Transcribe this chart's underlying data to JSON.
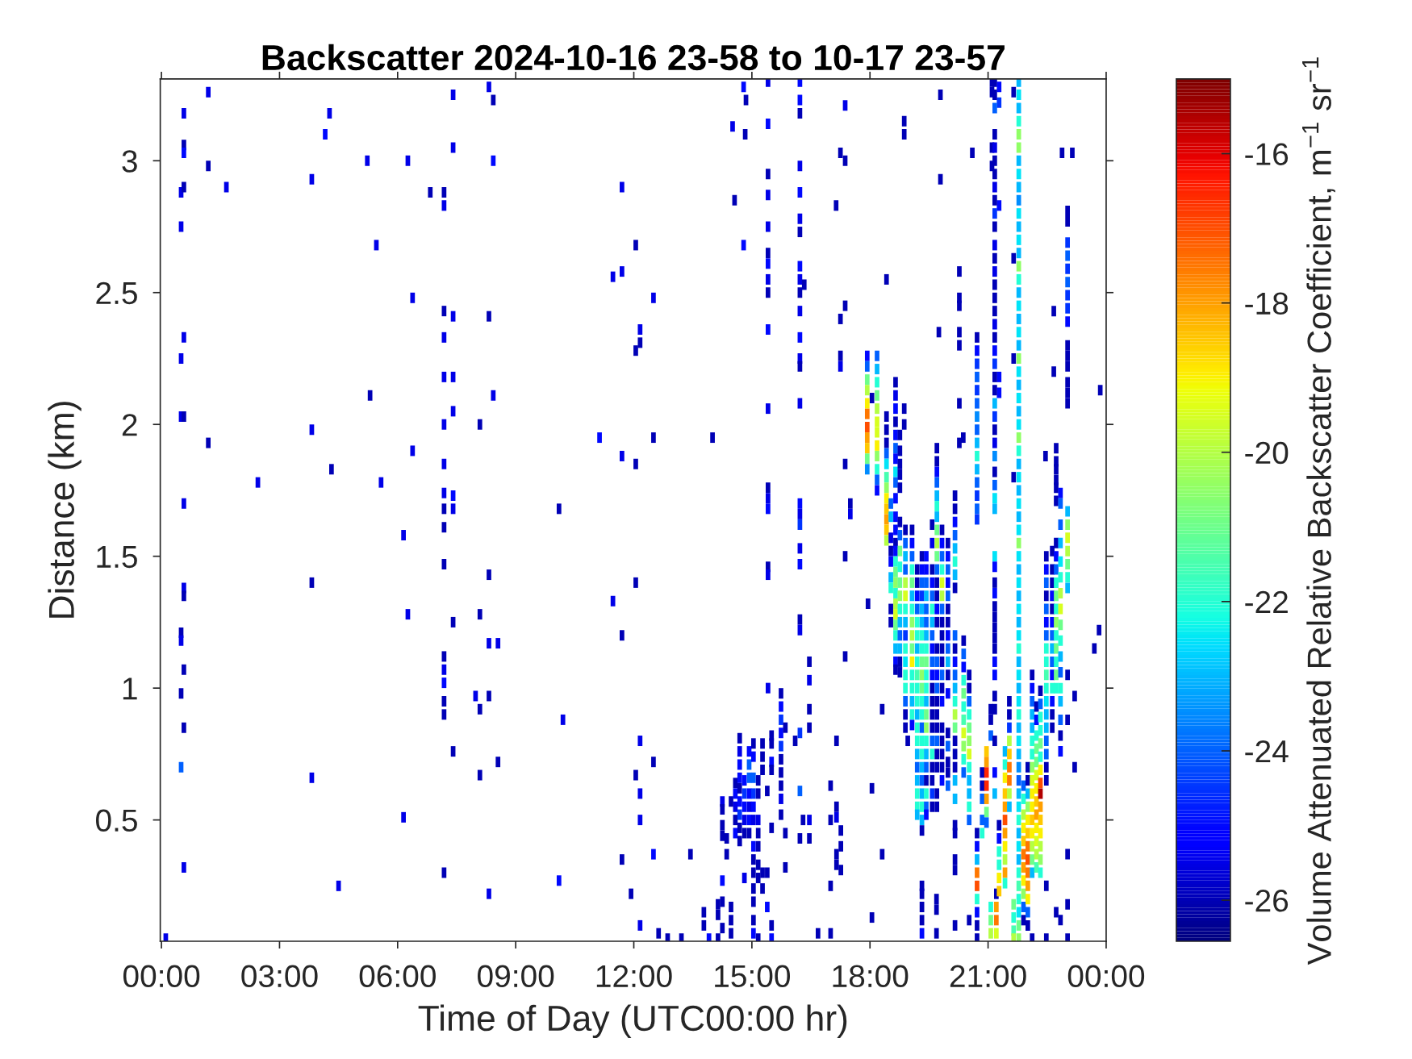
{
  "chart_data": {
    "type": "scatter",
    "title": "Backscatter 2024-10-16 23-58 to 10-17 23-57",
    "xlabel": "Time of Day (UTC00:00 hr)",
    "ylabel": "Distance (km)",
    "clabel": "Volume Attenuated Relative Backscatter Coefficient, m$^{−1}$ sr$^{−1}$",
    "marker": "square",
    "xlim": [
      -0.03,
      24
    ],
    "ylim": [
      0.04,
      3.31
    ],
    "xticks": [
      {
        "value": 0,
        "label": "00:00"
      },
      {
        "value": 3,
        "label": "03:00"
      },
      {
        "value": 6,
        "label": "06:00"
      },
      {
        "value": 9,
        "label": "09:00"
      },
      {
        "value": 12,
        "label": "12:00"
      },
      {
        "value": 15,
        "label": "15:00"
      },
      {
        "value": 18,
        "label": "18:00"
      },
      {
        "value": 21,
        "label": "21:00"
      },
      {
        "value": 24,
        "label": "00:00"
      }
    ],
    "yticks": [
      0.5,
      1,
      1.5,
      2,
      2.5,
      3
    ],
    "clim": [
      -26.55,
      -15
    ],
    "cticks": [
      -26,
      -24,
      -22,
      -20,
      -18,
      -16
    ],
    "x": [
      1.19,
      0.57,
      0.57,
      0.57,
      1.19,
      0.5,
      0.57,
      1.65,
      0.5,
      3.82,
      4.27,
      4.16,
      5.23,
      6.26,
      5.46,
      6.83,
      7.18,
      7.18,
      7.41,
      8.32,
      8.43,
      7.41,
      8.43,
      6.38,
      7.18,
      7.18,
      7.41,
      8.32,
      7.18,
      7.41,
      8.43,
      5.3,
      0.5,
      0.57,
      0.5,
      0.57,
      3.82,
      7.18,
      7.41,
      8.09,
      6.38,
      1.19,
      7.18,
      4.32,
      2.45,
      5.58,
      0.57,
      7.18,
      7.18,
      7.18,
      7.41,
      7.41,
      6.15,
      10.1,
      7.18,
      8.32,
      3.82,
      0.57,
      0.57,
      6.26,
      8.09,
      7.41,
      0.5,
      0.5,
      8.32,
      8.55,
      7.18,
      7.18,
      7.18,
      0.57,
      0.5,
      7.18,
      7.18,
      7.98,
      8.32,
      8.09,
      0.57,
      10.2,
      7.41,
      8.09,
      8.55,
      0.5,
      3.82,
      6.15,
      0.57,
      7.18,
      10.1,
      4.5,
      8.32,
      0.11,
      12.05,
      11.7,
      11.47,
      12.5,
      12.16,
      12.16,
      12.05,
      11.7,
      11.13,
      12.5,
      14.0,
      11.7,
      12.05,
      12.05,
      11.47,
      11.7,
      12.16,
      12.05,
      12.5,
      12.16,
      12.16,
      11.7,
      12.5,
      13.44,
      11.93,
      12.16,
      12.63,
      12.86,
      13.21,
      13.91,
      13.78,
      13.78,
      14.14,
      14.14,
      14.14,
      14.79,
      14.85,
      14.51,
      14.83,
      14.56,
      14.79,
      14.25,
      14.25,
      14.25,
      14.25,
      14.25,
      14.25,
      14.25,
      14.36,
      14.36,
      14.47,
      14.47,
      14.47,
      14.47,
      14.58,
      14.58,
      14.58,
      14.58,
      14.58,
      14.69,
      14.69,
      14.69,
      14.69,
      14.69,
      14.69,
      14.69,
      14.69,
      14.69,
      14.81,
      14.81,
      14.81,
      14.81,
      14.81,
      14.81,
      14.93,
      14.93,
      14.93,
      14.93,
      14.93,
      14.93,
      14.93,
      15.04,
      15.04,
      15.04,
      15.04,
      15.04,
      15.04,
      15.04,
      15.04,
      15.04,
      15.04,
      15.04,
      15.04,
      15.04,
      15.16,
      15.16,
      15.16,
      15.16,
      15.16,
      15.16,
      15.16,
      15.16,
      15.27,
      15.27,
      15.27,
      15.27,
      15.27,
      15.39,
      15.39,
      15.39,
      15.5,
      15.5,
      15.5,
      15.5,
      15.5,
      15.5,
      15.5,
      15.74,
      15.74,
      15.74,
      15.74,
      15.74,
      15.74,
      15.74,
      15.74,
      15.74,
      15.74,
      15.85,
      15.85,
      15.85,
      16.1,
      15.41,
      15.41,
      15.41,
      15.41,
      15.41,
      15.41,
      15.41,
      15.41,
      15.41,
      15.41,
      15.41,
      15.41,
      15.41,
      15.41,
      15.41,
      15.41,
      15.41,
      16.22,
      16.22,
      16.22,
      16.22,
      16.22,
      16.22,
      16.22,
      16.22,
      16.22,
      16.22,
      16.22,
      16.22,
      16.22,
      16.22,
      16.22,
      16.22,
      16.22,
      16.22,
      16.22,
      16.22,
      16.22,
      16.22,
      16.22,
      16.22,
      16.22,
      16.33,
      16.3,
      16.46,
      16.46,
      16.46,
      16.46,
      16.46,
      16.46,
      16.68,
      17.0,
      17.0,
      17.0,
      17.0,
      17.15,
      17.15,
      17.15,
      17.15,
      17.15,
      17.26,
      17.26,
      17.26,
      17.37,
      17.37,
      18.05,
      18.05,
      18.31,
      18.31,
      17.25,
      17.37,
      17.37,
      17.14,
      17.37,
      17.25,
      17.25,
      17.25,
      17.37,
      17.5,
      17.5,
      17.95,
      18.05,
      18.87,
      18.87,
      18.87,
      18.87,
      20.37,
      20.6,
      19.32,
      19.32,
      19.32,
      19.32,
      19.32,
      19.69,
      19.69,
      19.69,
      20.16,
      20.16,
      20.16,
      20.16,
      20.16,
      20.52,
      22.88,
      23.14,
      22.67,
      22.67,
      23.85,
      22.46,
      23.82,
      23.7,
      23.2,
      23.2,
      23.02,
      23.02,
      23.02,
      23.02,
      23.02,
      22.73,
      22.84,
      22.48,
      22.48,
      22.12,
      21.1,
      21.1,
      21.1,
      21.1,
      21.28,
      21.28,
      21.28,
      21.28,
      21.28,
      21.65,
      21.65,
      21.65,
      21.65,
      18.96,
      19.79,
      19.79,
      19.75,
      17.93,
      17.93,
      17.93,
      17.93,
      17.93,
      17.93,
      17.93,
      17.93,
      17.93,
      17.93,
      17.93,
      18.18,
      18.18,
      18.18,
      18.18,
      18.18,
      18.18,
      18.18,
      18.18,
      18.18,
      18.18,
      18.18,
      18.18,
      18.42,
      18.42,
      18.42,
      18.42,
      18.42,
      18.42,
      18.42,
      18.42,
      18.42,
      18.42,
      18.42,
      18.42,
      18.42,
      18.53,
      18.53,
      18.53,
      18.53,
      18.53,
      18.53,
      18.53,
      18.53,
      18.53,
      18.65,
      18.65,
      18.65,
      18.65,
      18.65,
      18.65,
      18.65,
      18.65,
      18.65,
      18.65,
      18.65,
      18.65,
      18.65,
      18.65,
      18.65,
      18.65,
      18.65,
      18.65,
      18.65,
      18.65,
      18.65,
      18.65,
      18.65,
      18.65,
      18.65,
      18.76,
      18.76,
      18.76,
      18.76,
      18.76,
      18.76,
      18.76,
      18.76,
      18.76,
      18.76,
      18.76,
      18.76,
      18.76,
      18.76,
      18.76,
      18.76,
      18.76,
      18.9,
      18.9,
      18.9,
      18.9,
      18.9,
      18.9,
      18.9,
      18.9,
      18.9,
      18.9,
      18.9,
      18.9,
      18.9,
      18.9,
      18.9,
      18.9,
      19.07,
      19.07,
      19.07,
      19.07,
      19.07,
      19.07,
      19.07,
      19.07,
      19.07,
      19.07,
      19.07,
      19.07,
      19.07,
      19.07,
      19.07,
      19.07,
      19.2,
      19.2,
      19.2,
      19.2,
      19.2,
      19.2,
      19.2,
      19.2,
      19.2,
      19.2,
      19.2,
      19.2,
      19.2,
      19.2,
      19.2,
      19.2,
      19.2,
      19.2,
      19.2,
      19.2,
      19.32,
      19.32,
      19.32,
      19.32,
      19.32,
      19.32,
      19.32,
      19.32,
      19.32,
      19.32,
      19.32,
      19.32,
      19.32,
      19.32,
      19.32,
      19.32,
      19.32,
      19.32,
      19.32,
      19.32,
      19.32,
      19.32,
      19.43,
      19.43,
      19.43,
      19.43,
      19.43,
      19.43,
      19.43,
      19.43,
      19.43,
      19.43,
      19.43,
      19.43,
      19.43,
      19.43,
      19.43,
      19.43,
      19.43,
      19.43,
      19.43,
      19.43,
      19.43,
      19.58,
      19.58,
      19.58,
      19.58,
      19.58,
      19.58,
      19.58,
      19.58,
      19.58,
      19.58,
      19.58,
      19.58,
      19.58,
      19.58,
      19.58,
      19.58,
      19.58,
      19.58,
      19.58,
      19.58,
      19.58,
      19.7,
      19.7,
      19.7,
      19.7,
      19.7,
      19.7,
      19.7,
      19.7,
      19.7,
      19.7,
      19.7,
      19.7,
      19.7,
      19.7,
      19.7,
      19.7,
      19.7,
      19.7,
      19.7,
      19.7,
      19.7,
      19.7,
      19.7,
      19.7,
      19.7,
      19.7,
      19.7,
      19.83,
      19.83,
      19.83,
      19.83,
      19.83,
      19.83,
      19.83,
      19.83,
      19.83,
      19.83,
      19.83,
      19.83,
      19.83,
      19.83,
      19.83,
      19.83,
      19.83,
      19.83,
      19.83,
      19.98,
      19.98,
      19.98,
      19.98,
      19.98,
      19.98,
      19.98,
      19.98,
      19.98,
      19.98,
      19.98,
      19.98,
      19.98,
      19.98,
      19.98,
      19.98,
      19.98,
      20.16,
      20.16,
      20.16,
      20.16,
      20.16,
      20.16,
      20.16,
      20.16,
      20.16,
      20.16,
      20.16,
      20.16,
      20.16,
      20.16,
      20.16,
      20.16,
      20.16,
      20.16,
      20.16,
      20.16,
      20.16,
      20.27,
      20.27,
      20.27,
      20.27,
      20.27,
      20.27,
      20.27,
      20.38,
      20.38,
      20.38,
      20.38,
      20.38,
      20.38,
      20.38,
      20.38,
      20.38,
      20.38,
      20.38,
      20.52,
      20.52,
      20.52,
      20.52,
      20.52,
      20.52,
      20.52,
      20.52,
      20.52,
      20.52,
      20.52,
      20.52,
      20.72,
      20.72,
      20.72,
      20.72,
      20.72,
      20.72,
      20.72,
      20.72,
      20.72,
      20.72,
      20.72,
      20.72,
      20.72,
      20.72,
      20.72,
      20.72,
      20.72,
      20.72,
      20.72,
      20.72,
      20.72,
      20.72,
      20.72,
      20.72,
      20.85,
      20.85,
      20.85,
      20.85,
      20.85,
      20.96,
      20.96,
      20.96,
      20.96,
      20.96,
      20.96,
      20.96,
      21.07,
      21.07,
      21.07,
      21.07,
      21.07,
      21.07,
      21.17,
      21.17,
      21.17,
      21.17,
      21.17,
      21.17,
      21.17,
      21.17,
      21.17,
      21.17,
      21.17,
      21.17,
      21.17,
      21.17,
      21.17,
      21.17,
      21.17,
      21.17,
      21.17,
      21.17,
      21.17,
      21.17,
      21.17,
      21.17,
      21.17,
      21.17,
      21.17,
      21.17,
      21.17,
      21.17,
      21.17,
      21.17,
      21.17,
      21.17,
      21.17,
      21.17,
      21.17,
      21.17,
      21.17,
      21.17,
      21.17,
      21.17,
      21.17,
      21.17,
      21.17,
      21.17,
      21.17,
      21.17,
      21.21,
      21.21,
      21.21,
      21.21,
      21.28,
      21.28,
      21.28,
      21.28,
      21.28,
      21.28,
      21.43,
      21.43,
      21.43,
      21.43,
      21.43,
      21.43,
      21.43,
      21.43,
      21.43,
      21.43,
      21.43,
      21.54,
      21.54,
      21.54,
      21.54,
      21.54,
      21.54,
      21.54,
      21.54,
      21.54,
      21.65,
      21.65,
      21.65,
      21.65,
      21.78,
      21.78,
      21.78,
      21.78,
      21.78,
      21.78,
      21.78,
      21.78,
      21.78,
      21.78,
      21.78,
      21.78,
      21.78,
      21.78,
      21.78,
      21.78,
      21.78,
      21.78,
      21.78,
      21.78,
      21.78,
      21.78,
      21.78,
      21.78,
      21.78,
      21.78,
      21.78,
      21.78,
      21.78,
      21.78,
      21.78,
      21.78,
      21.78,
      21.78,
      21.78,
      21.78,
      21.78,
      21.78,
      21.78,
      21.78,
      21.78,
      21.78,
      21.78,
      21.78,
      21.78,
      21.78,
      21.78,
      21.78,
      21.78,
      21.78,
      21.78,
      21.78,
      21.78,
      21.78,
      21.78,
      21.78,
      21.78,
      21.78,
      21.78,
      21.78,
      21.78,
      21.78,
      21.78,
      21.78,
      21.78,
      21.78,
      21.9,
      21.9,
      21.9,
      21.9,
      21.9,
      21.9,
      21.9,
      21.9,
      21.9,
      21.9,
      21.9,
      22.01,
      22.01,
      22.01,
      22.01,
      22.01,
      22.01,
      22.01,
      22.01,
      22.01,
      22.01,
      22.01,
      22.01,
      22.01,
      22.12,
      22.12,
      22.12,
      22.12,
      22.12,
      22.12,
      22.12,
      22.12,
      22.12,
      22.12,
      22.12,
      22.12,
      22.12,
      22.12,
      22.12,
      22.12,
      22.23,
      22.23,
      22.23,
      22.23,
      22.23,
      22.23,
      22.23,
      22.23,
      22.23,
      22.23,
      22.23,
      22.23,
      22.23,
      22.33,
      22.33,
      22.33,
      22.33,
      22.33,
      22.33,
      22.33,
      22.33,
      22.33,
      22.33,
      22.33,
      22.33,
      22.33,
      22.33,
      22.33,
      22.48,
      22.48,
      22.48,
      22.48,
      22.48,
      22.48,
      22.48,
      22.48,
      22.48,
      22.48,
      22.48,
      22.48,
      22.48,
      22.48,
      22.48,
      22.48,
      22.48,
      22.48,
      22.63,
      22.63,
      22.63,
      22.63,
      22.63,
      22.63,
      22.63,
      22.63,
      22.63,
      22.63,
      22.63,
      22.63,
      22.63,
      22.63,
      22.73,
      22.73,
      22.73,
      22.73,
      22.73,
      22.73,
      22.73,
      22.73,
      22.73,
      22.73,
      22.73,
      22.73,
      22.73,
      22.73,
      22.73,
      22.73,
      22.73,
      22.73,
      22.84,
      22.84,
      22.84,
      22.84,
      22.84,
      22.84,
      22.84,
      22.84,
      22.84,
      22.84,
      22.84,
      22.84,
      22.84,
      22.84,
      22.84,
      22.84,
      22.84,
      23.02,
      23.02,
      23.02,
      23.02,
      23.02,
      23.02,
      23.02,
      23.02,
      23.02,
      23.02,
      23.02,
      23.02,
      23.02,
      23.02,
      23.02,
      23.02,
      23.02,
      23.02,
      23.02,
      23.02,
      23.02,
      23.02
    ],
    "values": [
      3.26,
      3.18,
      3.06,
      3.03,
      2.98,
      2.88,
      2.9,
      2.9,
      2.75,
      2.93,
      3.18,
      3.1,
      3.0,
      3.0,
      2.68,
      2.88,
      2.88,
      2.83,
      3.25,
      3.28,
      3.23,
      3.05,
      3.0,
      2.48,
      2.43,
      2.33,
      2.41,
      2.41,
      2.18,
      2.18,
      2.11,
      2.11,
      2.25,
      2.33,
      2.03,
      2.03,
      1.98,
      2.0,
      2.05,
      2.0,
      1.9,
      1.93,
      1.85,
      1.83,
      1.78,
      1.78,
      1.7,
      1.74,
      1.68,
      1.61,
      1.73,
      1.68,
      1.58,
      1.68,
      1.47,
      1.43,
      1.4,
      1.38,
      1.35,
      1.28,
      1.28,
      1.25,
      1.21,
      1.18,
      1.17,
      1.17,
      1.12,
      1.07,
      1.02,
      1.07,
      0.98,
      0.95,
      0.9,
      0.97,
      0.97,
      0.92,
      0.85,
      0.88,
      0.76,
      0.67,
      0.72,
      0.7,
      0.66,
      0.51,
      0.32,
      0.3,
      0.27,
      0.25,
      0.22,
      0.05,
      2.68,
      2.58,
      2.56,
      2.48,
      2.36,
      2.31,
      2.28,
      2.9,
      1.95,
      1.95,
      1.95,
      1.88,
      1.85,
      1.4,
      1.33,
      1.2,
      0.8,
      0.67,
      0.72,
      0.6,
      0.5,
      0.35,
      0.37,
      0.37,
      0.22,
      0.1,
      0.07,
      0.05,
      0.05,
      0.05,
      0.15,
      0.1,
      0.18,
      0.14,
      0.05,
      3.28,
      3.23,
      3.13,
      3.1,
      2.85,
      2.68,
      0.57,
      0.54,
      0.48,
      0.44,
      0.27,
      0.19,
      0.09,
      0.43,
      0.37,
      0.57,
      0.17,
      0.12,
      0.07,
      0.64,
      0.6,
      0.55,
      0.5,
      0.45,
      0.81,
      0.76,
      0.71,
      0.66,
      0.62,
      0.57,
      0.52,
      0.47,
      0.42,
      0.65,
      0.6,
      0.55,
      0.5,
      0.45,
      0.28,
      0.76,
      0.71,
      0.66,
      0.6,
      0.55,
      0.5,
      0.45,
      0.79,
      0.74,
      0.66,
      0.6,
      0.55,
      0.5,
      0.4,
      0.35,
      0.3,
      0.24,
      0.19,
      0.12,
      0.07,
      0.65,
      0.6,
      0.5,
      0.45,
      0.4,
      0.33,
      0.28,
      0.05,
      0.79,
      0.74,
      0.69,
      0.3,
      0.24,
      0.61,
      0.3,
      0.17,
      0.82,
      0.79,
      0.72,
      0.69,
      0.47,
      0.1,
      0.05,
      0.98,
      0.93,
      0.88,
      0.83,
      0.78,
      0.73,
      0.68,
      0.63,
      0.58,
      0.52,
      0.85,
      0.45,
      0.32,
      0.8,
      3.3,
      3.14,
      2.95,
      2.87,
      2.75,
      2.65,
      2.61,
      2.55,
      2.5,
      2.36,
      2.06,
      1.76,
      1.72,
      1.68,
      1.46,
      1.43,
      1.0,
      3.3,
      3.23,
      3.18,
      2.98,
      2.88,
      2.78,
      2.73,
      2.6,
      2.55,
      2.5,
      2.43,
      2.33,
      2.25,
      2.22,
      2.08,
      1.7,
      1.66,
      1.62,
      1.53,
      1.47,
      1.26,
      1.22,
      0.83,
      0.61,
      0.43,
      2.53,
      0.5,
      1.1,
      1.03,
      0.92,
      0.85,
      0.5,
      0.43,
      0.07,
      0.63,
      0.5,
      0.25,
      0.07,
      0.8,
      0.55,
      0.51,
      0.37,
      0.33,
      0.46,
      0.4,
      0.31,
      1.5,
      1.12,
      0.62,
      0.13,
      0.92,
      0.37,
      3.03,
      3.0,
      3.21,
      2.83,
      2.45,
      2.4,
      2.26,
      2.22,
      1.85,
      1.7,
      1.66,
      1.32,
      2.1,
      3.15,
      3.1,
      2.06,
      2.0,
      1.95,
      3.03,
      0.25,
      0.22,
      0.17,
      0.12,
      0.07,
      0.2,
      0.16,
      0.07,
      0.48,
      0.45,
      0.35,
      0.31,
      0.1,
      0.12,
      3.03,
      3.03,
      2.43,
      2.2,
      2.13,
      1.88,
      1.22,
      1.15,
      0.97,
      0.7,
      1.05,
      0.88,
      0.37,
      0.18,
      0.05,
      0.15,
      0.12,
      0.25,
      0.05,
      0.05,
      3.3,
      3.26,
      3.05,
      2.98,
      3.28,
      3.22,
      2.83,
      2.18,
      2.12,
      3.26,
      2.63,
      2.25,
      1.8,
      0.8,
      3.25,
      2.93,
      2.35,
      2.26,
      2.22,
      2.17,
      2.13,
      2.08,
      2.04,
      1.99,
      1.95,
      1.91,
      1.87,
      1.83,
      2.26,
      2.21,
      2.16,
      2.11,
      2.06,
      2.01,
      1.97,
      1.92,
      1.88,
      1.83,
      1.79,
      1.75,
      2.55,
      2.03,
      1.98,
      1.93,
      1.89,
      1.85,
      1.8,
      1.76,
      1.72,
      1.68,
      1.64,
      1.6,
      1.56,
      1.7,
      1.65,
      1.57,
      1.52,
      1.48,
      1.42,
      1.38,
      1.3,
      1.25,
      2.16,
      2.11,
      2.06,
      2.01,
      1.96,
      1.91,
      1.87,
      1.82,
      1.78,
      1.72,
      1.65,
      1.6,
      1.55,
      1.52,
      1.48,
      1.44,
      1.4,
      1.36,
      1.32,
      1.28,
      1.24,
      1.2,
      1.15,
      1.1,
      1.07,
      1.96,
      1.9,
      1.85,
      1.81,
      1.76,
      1.63,
      1.58,
      1.52,
      1.46,
      1.4,
      1.35,
      1.3,
      1.25,
      1.2,
      1.15,
      1.1,
      1.06,
      1.6,
      1.55,
      1.5,
      1.45,
      1.4,
      1.35,
      1.3,
      1.25,
      1.2,
      1.15,
      1.1,
      1.05,
      1.0,
      0.95,
      0.9,
      0.85,
      1.6,
      1.55,
      1.5,
      1.45,
      1.4,
      1.35,
      1.3,
      1.25,
      1.2,
      1.15,
      1.1,
      1.05,
      1.0,
      0.95,
      0.9,
      0.86,
      1.45,
      1.4,
      1.35,
      1.3,
      1.25,
      1.2,
      1.15,
      1.1,
      1.05,
      1.0,
      0.95,
      0.9,
      0.85,
      0.8,
      0.75,
      0.7,
      0.65,
      0.6,
      0.55,
      0.52,
      1.5,
      1.45,
      1.4,
      1.35,
      1.3,
      1.25,
      1.2,
      1.15,
      1.1,
      1.05,
      1.0,
      0.95,
      0.9,
      0.85,
      0.8,
      0.75,
      0.7,
      0.65,
      0.6,
      0.55,
      0.5,
      0.46,
      1.5,
      1.45,
      1.4,
      1.35,
      1.3,
      1.25,
      1.2,
      1.15,
      1.1,
      1.05,
      1.0,
      0.95,
      0.9,
      0.85,
      0.8,
      0.75,
      0.7,
      0.65,
      0.6,
      0.55,
      0.52,
      1.62,
      1.55,
      1.45,
      1.4,
      1.35,
      1.3,
      1.25,
      1.2,
      1.15,
      1.1,
      1.05,
      1.0,
      0.95,
      0.9,
      0.85,
      0.8,
      0.75,
      0.7,
      0.65,
      0.6,
      0.55,
      1.91,
      1.86,
      1.82,
      1.78,
      1.73,
      1.69,
      1.65,
      1.6,
      1.55,
      1.5,
      1.45,
      1.4,
      1.35,
      1.3,
      1.25,
      1.15,
      1.1,
      1.05,
      1.0,
      0.95,
      0.9,
      0.85,
      0.8,
      0.75,
      0.7,
      0.6,
      0.55,
      1.6,
      1.55,
      1.5,
      1.45,
      1.4,
      1.35,
      1.3,
      1.25,
      1.2,
      1.15,
      1.1,
      1.05,
      1.0,
      0.95,
      0.85,
      0.8,
      0.75,
      0.7,
      0.65,
      1.55,
      1.5,
      1.45,
      1.4,
      1.35,
      1.3,
      1.25,
      1.2,
      1.15,
      1.1,
      1.05,
      0.98,
      0.83,
      0.78,
      0.72,
      0.68,
      0.63,
      1.73,
      1.68,
      1.63,
      1.58,
      1.53,
      1.48,
      1.43,
      1.38,
      1.2,
      1.15,
      1.1,
      1.05,
      1.0,
      0.95,
      0.9,
      0.85,
      0.8,
      0.75,
      0.7,
      0.65,
      0.58,
      2.58,
      2.48,
      2.45,
      2.35,
      2.3,
      2.08,
      1.93,
      1.18,
      1.13,
      1.08,
      1.03,
      0.98,
      0.93,
      0.88,
      0.83,
      0.78,
      0.73,
      0.68,
      1.05,
      1.0,
      0.95,
      0.9,
      0.85,
      0.8,
      0.75,
      0.7,
      0.65,
      0.6,
      0.55,
      0.5,
      2.33,
      2.28,
      2.23,
      2.18,
      2.13,
      2.08,
      2.03,
      1.98,
      1.93,
      1.88,
      1.83,
      1.78,
      1.73,
      1.68,
      1.64,
      0.45,
      0.4,
      0.35,
      0.3,
      0.25,
      0.2,
      0.15,
      0.1,
      0.05,
      0.68,
      0.63,
      0.58,
      0.5,
      0.45,
      0.76,
      0.72,
      0.68,
      0.63,
      0.58,
      0.53,
      0.49,
      0.92,
      0.88,
      0.82,
      0.17,
      0.12,
      0.07,
      3.3,
      3.25,
      3.2,
      3.1,
      3.05,
      3.0,
      2.95,
      2.9,
      2.85,
      2.8,
      2.75,
      2.68,
      2.63,
      2.58,
      2.53,
      2.48,
      2.43,
      2.38,
      2.33,
      2.28,
      2.23,
      2.18,
      2.13,
      2.08,
      2.03,
      1.98,
      1.93,
      1.88,
      1.82,
      1.77,
      1.72,
      1.68,
      1.5,
      1.46,
      1.4,
      1.36,
      1.31,
      1.27,
      1.23,
      1.19,
      1.15,
      1.1,
      1.05,
      0.97,
      0.92,
      0.8,
      0.68,
      0.6,
      0.22,
      0.17,
      0.12,
      0.07,
      0.48,
      0.43,
      0.38,
      0.33,
      0.28,
      0.23,
      0.76,
      0.71,
      0.66,
      0.6,
      0.55,
      0.5,
      0.45,
      0.4,
      0.35,
      0.3,
      0.26,
      0.95,
      0.9,
      0.85,
      0.8,
      0.75,
      0.7,
      0.65,
      0.6,
      0.55,
      0.18,
      0.13,
      0.08,
      0.05,
      3.3,
      3.25,
      3.2,
      3.15,
      3.1,
      3.05,
      3.0,
      2.95,
      2.9,
      2.85,
      2.8,
      2.75,
      2.7,
      2.65,
      2.6,
      2.55,
      2.5,
      2.45,
      2.4,
      2.35,
      2.3,
      2.25,
      2.2,
      2.15,
      2.1,
      2.05,
      2.0,
      1.95,
      1.9,
      1.85,
      1.8,
      1.75,
      1.7,
      1.65,
      1.6,
      1.55,
      1.5,
      1.45,
      1.4,
      1.35,
      1.3,
      1.25,
      1.2,
      1.15,
      1.1,
      1.05,
      1.0,
      0.95,
      0.9,
      0.85,
      0.8,
      0.75,
      0.7,
      0.65,
      0.6,
      0.55,
      0.5,
      0.45,
      0.4,
      0.35,
      0.3,
      0.25,
      0.2,
      0.15,
      0.1,
      0.05,
      0.63,
      0.58,
      0.52,
      0.47,
      0.42,
      0.37,
      0.32,
      0.27,
      0.22,
      0.17,
      0.12,
      0.7,
      0.65,
      0.6,
      0.55,
      0.5,
      0.45,
      0.4,
      0.35,
      0.3,
      0.25,
      0.2,
      0.15,
      0.1,
      1.05,
      1.0,
      0.95,
      0.9,
      0.85,
      0.8,
      0.75,
      0.7,
      0.65,
      0.6,
      0.55,
      0.5,
      0.45,
      0.4,
      0.35,
      0.3,
      0.93,
      0.88,
      0.82,
      0.77,
      0.72,
      0.67,
      0.62,
      0.57,
      0.52,
      0.47,
      0.42,
      0.37,
      0.32,
      0.99,
      0.94,
      0.89,
      0.84,
      0.79,
      0.74,
      0.69,
      0.64,
      0.6,
      0.55,
      0.5,
      0.45,
      0.4,
      0.35,
      0.3,
      1.5,
      1.45,
      1.4,
      1.35,
      1.3,
      1.25,
      1.2,
      1.15,
      1.1,
      1.05,
      1.0,
      0.95,
      0.9,
      0.85,
      0.8,
      0.75,
      0.7,
      0.65,
      1.52,
      1.45,
      1.4,
      1.35,
      1.3,
      1.25,
      1.2,
      1.15,
      1.1,
      1.05,
      1.0,
      0.95,
      0.9,
      0.85,
      1.91,
      1.86,
      1.83,
      1.79,
      1.76,
      1.71,
      1.55,
      1.5,
      1.45,
      1.4,
      1.35,
      1.3,
      1.25,
      1.2,
      1.15,
      1.1,
      1.05,
      1.0,
      1.74,
      1.7,
      1.62,
      1.55,
      1.48,
      1.42,
      1.36,
      1.3,
      1.24,
      1.18,
      1.12,
      1.06,
      1.0,
      0.95,
      0.88,
      0.82,
      0.76,
      2.81,
      2.77,
      2.69,
      2.64,
      2.59,
      2.54,
      2.49,
      2.44,
      2.39,
      2.3,
      2.26,
      2.22,
      2.16,
      2.12,
      2.08,
      1.67,
      1.62,
      1.57,
      1.52,
      1.47,
      1.42,
      1.38
    ],
    "cvalues": [
      -25.5,
      -25.5,
      -26,
      -25,
      -26,
      -25.5,
      -26,
      -25.5,
      -25.5,
      -25.5,
      -25.5,
      -25,
      -25.5,
      -25.5,
      -25.5,
      -26,
      -26,
      -25.5,
      -25.5,
      -25.5,
      -26,
      -25.5,
      -25,
      -25.5,
      -26,
      -25.5,
      -25.5,
      -26,
      -25.5,
      -25.5,
      -25.5,
      -26,
      -25.5,
      -25.5,
      -25.5,
      -26,
      -25.5,
      -25.5,
      -25.5,
      -26,
      -25.5,
      -26,
      -25.5,
      -26,
      -25.5,
      -25.5,
      -25.5,
      -25.5,
      -26,
      -26,
      -25,
      -25.5,
      -25.5,
      -26,
      -26,
      -26,
      -26,
      -25.5,
      -26,
      -25.5,
      -26,
      -26,
      -26,
      -25.5,
      -25.5,
      -25.5,
      -26,
      -25.5,
      -25,
      -26,
      -26,
      -26,
      -26,
      -25.5,
      -26,
      -26,
      -26,
      -25.5,
      -26,
      -26,
      -26,
      -24,
      -25.5,
      -25.5,
      -25.5,
      -26,
      -25,
      -25.5,
      -25.5,
      -25.5,
      -26,
      -25.5,
      -25.5,
      -25.5,
      -25.5,
      -26,
      -26,
      -25.5,
      -25,
      -26,
      -26,
      -25.5,
      -26,
      -26,
      -25.5,
      -26,
      -25.5,
      -26,
      -26,
      -25.5,
      -25.5,
      -26,
      -25,
      -26,
      -26,
      -25.5,
      -26,
      -26,
      -26,
      -25,
      -26,
      -26,
      -26,
      -26,
      -26,
      -25,
      -26,
      -25.5,
      -26,
      -26,
      -25,
      -25.5,
      -26,
      -26,
      -26,
      -25,
      -26,
      -26,
      -26,
      -26,
      -26,
      -26,
      -26,
      -26,
      -26,
      -25,
      -25.5,
      -26,
      -25,
      -26,
      -25.5,
      -25,
      -25,
      -26,
      -25,
      -24.5,
      -26,
      -26,
      -25,
      -24.5,
      -25,
      -25.5,
      -26,
      -25.5,
      -25,
      -24,
      -24,
      -25,
      -25.5,
      -25,
      -26,
      -26,
      -25,
      -24,
      -24.5,
      -25,
      -25.5,
      -25,
      -26,
      -26,
      -26,
      -26,
      -26,
      -25,
      -26,
      -26,
      -25.5,
      -26,
      -26,
      -26,
      -26,
      -26,
      -26,
      -26,
      -26,
      -26,
      -26,
      -26,
      -26,
      -25,
      -26,
      -26,
      -25,
      -26,
      -26,
      -26,
      -25,
      -26,
      -25,
      -24.5,
      -25,
      -24.5,
      -26,
      -26,
      -26,
      -25.5,
      -26,
      -26,
      -26,
      -26,
      -26,
      -25.5,
      -25,
      -26,
      -25.5,
      -25.5,
      -26,
      -25,
      -25.5,
      -26,
      -25,
      -25.5,
      -26,
      -25.5,
      -25,
      -26,
      -25.5,
      -25.5,
      -25,
      -25,
      -26,
      -25.5,
      -25,
      -25.5,
      -26,
      -25,
      -25.5,
      -26,
      -25.5,
      -25,
      -25.5,
      -26,
      -25.5,
      -25,
      -25.5,
      -24.5,
      -25.5,
      -25,
      -26,
      -25.5,
      -24.5,
      -24,
      -26,
      -26,
      -26,
      -26,
      -25.5,
      -26,
      -26,
      -25.5,
      -26,
      -26,
      -26,
      -26,
      -26,
      -26,
      -26,
      -26,
      -25.5,
      -26,
      -26,
      -26,
      -26,
      -26,
      -26,
      -26,
      -26,
      -26,
      -26,
      -26,
      -26,
      -26,
      -25.5,
      -26,
      -26,
      -26,
      -26,
      -25.5,
      -26,
      -26,
      -25.5,
      -26,
      -26,
      -26,
      -26,
      -26,
      -26,
      -26,
      -26,
      -26,
      -26,
      -26,
      -26,
      -25,
      -26,
      -26,
      -26,
      -26,
      -26,
      -26,
      -26,
      -26,
      -26,
      -26,
      -26,
      -26,
      -26,
      -26,
      -26,
      -26,
      -26,
      -26,
      -26,
      -26,
      -26,
      -26,
      -26,
      -26,
      -26,
      -26,
      -26,
      -26,
      -26,
      -26,
      -26,
      -26,
      -26,
      -25,
      -24.5,
      -25,
      -25,
      -25,
      -26,
      -26,
      -26,
      -26,
      -26,
      -26,
      -26,
      -26,
      -25,
      -24,
      -21,
      -20,
      -19,
      -17.5,
      -17,
      -18,
      -18.5,
      -21,
      -23.5,
      -24,
      -23,
      -22,
      -21,
      -20,
      -19.5,
      -19.5,
      -19,
      -20.5,
      -22,
      -24,
      -25,
      -26,
      -26,
      -26,
      -26,
      -24,
      -22.5,
      -21.5,
      -20.5,
      -19,
      -18.5,
      -18,
      -18.5,
      -20,
      -24,
      -23,
      -25.5,
      -26,
      -25,
      -23,
      -22,
      -26,
      -26,
      -26,
      -25.5,
      -25,
      -26,
      -25,
      -24,
      -25,
      -22.5,
      -24,
      -25,
      -25,
      -25,
      -26,
      -25,
      -22,
      -21,
      -20.5,
      -22,
      -20,
      -19.5,
      -21,
      -22,
      -23,
      -25,
      -26,
      -26,
      -26,
      -26,
      -26,
      -26,
      -26,
      -24,
      -21,
      -22,
      -21,
      -20.5,
      -22,
      -23,
      -24,
      -23,
      -26,
      -26,
      -26,
      -24,
      -23,
      -24,
      -20,
      -19.5,
      -22,
      -23,
      -24.5,
      -22,
      -22.5,
      -22,
      -22,
      -24,
      -26,
      -26,
      -26,
      -25,
      -24,
      -22,
      -21,
      -23,
      -22,
      -20.5,
      -20,
      -21,
      -19,
      -22,
      -22,
      -23,
      -22,
      -25,
      -26,
      -26,
      -25,
      -24,
      -22,
      -22,
      -23,
      -22,
      -21.5,
      -22,
      -22,
      -23,
      -22,
      -22,
      -23,
      -24,
      -23,
      -22,
      -22,
      -23,
      -26,
      -25,
      -24,
      -24.5,
      -23,
      -23,
      -22,
      -22,
      -21,
      -20.5,
      -21,
      -22,
      -22,
      -24,
      -22,
      -22,
      -23,
      -24,
      -23,
      -22,
      -23,
      -26,
      -25,
      -25,
      -24,
      -23,
      -24,
      -24,
      -23,
      -22,
      -21,
      -22,
      -22,
      -23,
      -21,
      -20.5,
      -22,
      -23,
      -24,
      -26,
      -22,
      -24,
      -25,
      -26,
      -25.5,
      -26,
      -25,
      -24,
      -22,
      -23,
      -24,
      -25,
      -24,
      -25,
      -26,
      -26,
      -26,
      -26,
      -24,
      -22,
      -26,
      -26,
      -24.5,
      -26,
      -26,
      -26,
      -25,
      -24,
      -23,
      -22,
      -23,
      -21,
      -20,
      -21,
      -24,
      -26,
      -26,
      -25,
      -26,
      -26,
      -24,
      -25,
      -24,
      -26,
      -26,
      -26,
      -24,
      -26,
      -26,
      -26,
      -26,
      -26,
      -25,
      -24,
      -22,
      -19.5,
      -20,
      -24,
      -26,
      -26,
      -26,
      -26,
      -24,
      -26,
      -25,
      -26,
      -26,
      -26,
      -26,
      -25,
      -26,
      -25,
      -24,
      -25,
      -24,
      -26,
      -26,
      -25,
      -24,
      -23,
      -26,
      -25,
      -26,
      -24,
      -26,
      -26,
      -24,
      -26,
      -26,
      -25,
      -24,
      -23,
      -22,
      -23,
      -26,
      -24,
      -26,
      -25,
      -24,
      -23,
      -22,
      -20,
      -21,
      -26,
      -26,
      -26,
      -23,
      -23,
      -26,
      -26,
      -26,
      -26,
      -26,
      -26,
      -26,
      -26,
      -24,
      -25,
      -22,
      -21,
      -22,
      -21.5,
      -19.5,
      -20.5,
      -22,
      -24,
      -26,
      -26,
      -24,
      -22,
      -21,
      -20.5,
      -19.5,
      -22,
      -23,
      -23,
      -22,
      -24,
      -26,
      -25,
      -24.5,
      -24,
      -24.5,
      -24,
      -23.5,
      -24,
      -23,
      -22,
      -23,
      -24,
      -24.5,
      -24,
      -24.5,
      -26,
      -25,
      -23,
      -17.5,
      -17,
      -22,
      -25,
      -26,
      -26,
      -26,
      -26,
      -24,
      -24,
      -22,
      -18.5,
      -18,
      -16.5,
      -16.5,
      -18,
      -21,
      -24,
      -26,
      -26,
      -24,
      -22,
      -21,
      -20,
      -26,
      -26,
      -24,
      -26,
      -25.5,
      -26,
      -26,
      -25.5,
      -26,
      -24.5,
      -26,
      -25.5,
      -26,
      -25.5,
      -26,
      -26,
      -26,
      -25.5,
      -26,
      -25,
      -24.5,
      -26,
      -26,
      -23,
      -24.5,
      -26,
      -25.5,
      -23.5,
      -26,
      -24,
      -22.5,
      -23,
      -22.5,
      -25,
      -26,
      -25,
      -26,
      -26,
      -26,
      -26,
      -26,
      -25,
      -25,
      -26,
      -26,
      -26,
      -25,
      -23,
      -26,
      -18,
      -17.5,
      -19.5,
      -26,
      -25,
      -22,
      -22,
      -19,
      -18.5,
      -23,
      -22,
      -19,
      -18.5,
      -18,
      -17,
      -18,
      -19,
      -20,
      -18,
      -22,
      -26,
      -26,
      -24.5,
      -20,
      -18.5,
      -17.5,
      -17.5,
      -20,
      -23,
      -21,
      -22,
      -21.5,
      -20,
      -23,
      -22.5,
      -23,
      -22,
      -20.5,
      -20.5,
      -23,
      -22.5,
      -23,
      -23.5,
      -22.5,
      -23,
      -22.5,
      -23,
      -20.5,
      -22,
      -23,
      -22.5,
      -23,
      -22.5,
      -23,
      -20.5,
      -22.5,
      -23,
      -22.5,
      -23,
      -22.5,
      -20.5,
      -22,
      -23,
      -22.5,
      -23,
      -22.5,
      -23,
      -22.5,
      -20.5,
      -22.5,
      -23,
      -22.5,
      -23,
      -22.5,
      -23,
      -22.5,
      -22,
      -23,
      -22.5,
      -23,
      -22.5,
      -22,
      -23,
      -22.5,
      -23,
      -23.5,
      -24,
      -23,
      -22.5,
      -22,
      -23,
      -22.5,
      -23,
      -22,
      -21.5,
      -22,
      -22.5,
      -21,
      -20.5,
      -24,
      -22,
      -20,
      -19,
      -18.5,
      -17.5,
      -18,
      -19,
      -20.5,
      -24,
      -26,
      -26,
      -26,
      -23,
      -20.5,
      -19,
      -18.5,
      -17.5,
      -17,
      -17.5,
      -18,
      -19,
      -24,
      -26,
      -26,
      -25,
      -24,
      -23,
      -23,
      -22,
      -22,
      -20.5,
      -19.5,
      -19,
      -19,
      -18.5,
      -19,
      -20,
      -21,
      -23,
      -26,
      -25,
      -22,
      -21,
      -21,
      -19.5,
      -19,
      -18.5,
      -18,
      -19,
      -19.5,
      -20,
      -21.5,
      -26,
      -24,
      -22,
      -22,
      -21,
      -22,
      -19,
      -17,
      -15.5,
      -18,
      -18.5,
      -19,
      -20,
      -20.5,
      -22,
      -26,
      -25,
      -24,
      -26,
      -24,
      -25,
      -24,
      -22,
      -22,
      -21.5,
      -22,
      -22.5,
      -23,
      -23,
      -24,
      -24,
      -26,
      -26,
      -26,
      -26,
      -26,
      -25,
      -26,
      -25,
      -24,
      -23,
      -24,
      -25,
      -22,
      -25,
      -26,
      -26,
      -26,
      -26,
      -26,
      -26,
      -26,
      -26,
      -26,
      -25,
      -24,
      -22,
      -21,
      -22,
      -20.5,
      -22,
      -21,
      -22,
      -21,
      -22,
      -25,
      -24,
      -24,
      -23,
      -22.5,
      -22,
      -20,
      -19.5,
      -21,
      -22,
      -23,
      -24,
      -22,
      -23,
      -24,
      -26,
      -25,
      -26,
      -26,
      -24.5,
      -24,
      -24.5,
      -24,
      -24.5,
      -24.5,
      -25,
      -26,
      -26,
      -26,
      -26,
      -26,
      -26,
      -23,
      -20.5,
      -19.5,
      -20,
      -21,
      -22,
      -23
    ]
  }
}
